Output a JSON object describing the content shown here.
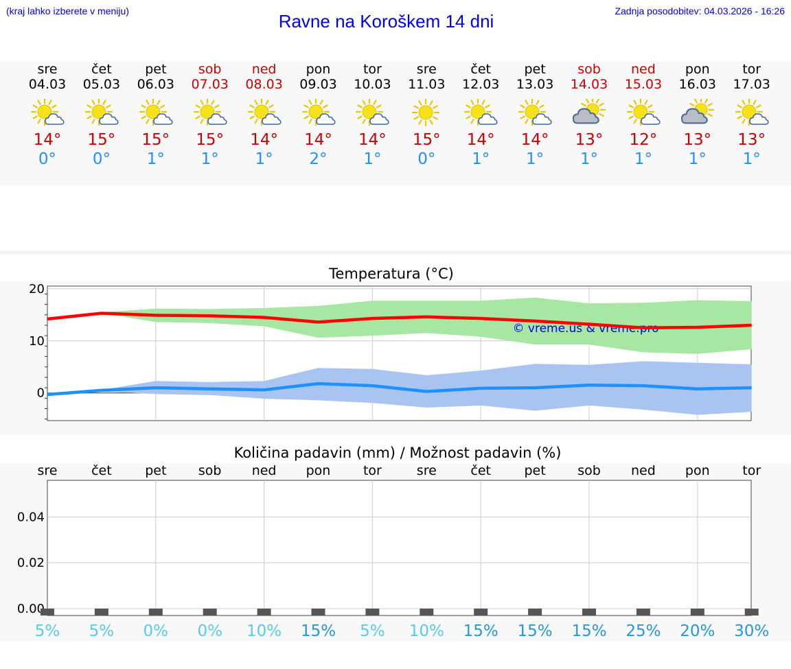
{
  "header": {
    "hint": "(kraj lahko izberete v meniju)",
    "title": "Ravne na Koroškem 14 dni",
    "updated": "Zadnja posodobitev: 04.03.2026 - 16:26"
  },
  "days": [
    {
      "name": "sre",
      "date": "04.03",
      "icon": "sun-cloud-icon",
      "tmax": "14°",
      "tmin": "0°",
      "weekend": false
    },
    {
      "name": "čet",
      "date": "05.03",
      "icon": "sun-cloud-icon",
      "tmax": "15°",
      "tmin": "0°",
      "weekend": false
    },
    {
      "name": "pet",
      "date": "06.03",
      "icon": "sun-cloud-icon",
      "tmax": "15°",
      "tmin": "1°",
      "weekend": false
    },
    {
      "name": "sob",
      "date": "07.03",
      "icon": "sun-cloud-icon",
      "tmax": "15°",
      "tmin": "1°",
      "weekend": true
    },
    {
      "name": "ned",
      "date": "08.03",
      "icon": "sun-cloud-icon",
      "tmax": "14°",
      "tmin": "1°",
      "weekend": true
    },
    {
      "name": "pon",
      "date": "09.03",
      "icon": "sun-cloud-icon",
      "tmax": "14°",
      "tmin": "2°",
      "weekend": false
    },
    {
      "name": "tor",
      "date": "10.03",
      "icon": "sun-cloud-icon",
      "tmax": "14°",
      "tmin": "1°",
      "weekend": false
    },
    {
      "name": "sre",
      "date": "11.03",
      "icon": "sun-icon",
      "tmax": "15°",
      "tmin": "0°",
      "weekend": false
    },
    {
      "name": "čet",
      "date": "12.03",
      "icon": "sun-cloud-icon",
      "tmax": "14°",
      "tmin": "1°",
      "weekend": false
    },
    {
      "name": "pet",
      "date": "13.03",
      "icon": "sun-cloud-icon",
      "tmax": "14°",
      "tmin": "1°",
      "weekend": false
    },
    {
      "name": "sob",
      "date": "14.03",
      "icon": "cloudy-sun-icon",
      "tmax": "13°",
      "tmin": "1°",
      "weekend": true
    },
    {
      "name": "ned",
      "date": "15.03",
      "icon": "sun-cloud-icon",
      "tmax": "12°",
      "tmin": "1°",
      "weekend": true
    },
    {
      "name": "pon",
      "date": "16.03",
      "icon": "cloudy-sun-icon",
      "tmax": "13°",
      "tmin": "1°",
      "weekend": false
    },
    {
      "name": "tor",
      "date": "17.03",
      "icon": "sun-cloud-icon",
      "tmax": "13°",
      "tmin": "1°",
      "weekend": false
    }
  ],
  "colors": {
    "max_line": "#ff0000",
    "max_band": "#a8e6a3",
    "min_line": "#1e90ff",
    "min_band": "#aac4f2",
    "pct_light": "#55ccee",
    "pct_dark": "#2299dd",
    "watermark": "#0000ee"
  },
  "chart_data": [
    {
      "type": "line",
      "title": "Temperatura (°C)",
      "watermark": "© vreme.us & vreme.pro",
      "x": [
        0,
        1,
        2,
        3,
        4,
        5,
        6,
        7,
        8,
        9,
        10,
        11,
        12,
        13
      ],
      "ylim": [
        -5.3,
        20.5
      ],
      "yticks": [
        0,
        10,
        20
      ],
      "series": [
        {
          "name": "max",
          "values": [
            14.2,
            15.3,
            14.9,
            14.8,
            14.5,
            13.6,
            14.3,
            14.6,
            14.3,
            13.8,
            13.2,
            12.5,
            12.6,
            13.0
          ],
          "band_low": [
            null,
            15.3,
            13.6,
            13.4,
            12.8,
            10.6,
            11.0,
            11.5,
            10.8,
            9.3,
            9.3,
            7.8,
            7.5,
            8.4
          ],
          "band_high": [
            null,
            15.5,
            16.2,
            16.1,
            16.3,
            16.7,
            17.7,
            17.7,
            17.7,
            18.3,
            17.2,
            17.3,
            17.8,
            17.6
          ]
        },
        {
          "name": "min",
          "values": [
            -0.3,
            0.5,
            1.0,
            0.8,
            0.6,
            1.8,
            1.4,
            0.3,
            0.9,
            1.0,
            1.5,
            1.4,
            0.8,
            1.0
          ],
          "band_low": [
            null,
            0.3,
            -0.2,
            -0.4,
            -1.1,
            -1.4,
            -1.9,
            -2.8,
            -2.4,
            -3.4,
            -2.4,
            -3.2,
            -4.2,
            -3.6
          ],
          "band_high": [
            null,
            0.6,
            2.3,
            2.1,
            2.3,
            4.8,
            4.6,
            3.4,
            4.3,
            5.6,
            5.4,
            6.1,
            5.8,
            5.5
          ]
        }
      ]
    },
    {
      "type": "bar",
      "title": "Količina padavin (mm) / Možnost padavin (%)",
      "categories": [
        "sre",
        "čet",
        "pet",
        "sob",
        "ned",
        "pon",
        "tor",
        "sre",
        "čet",
        "pet",
        "sob",
        "ned",
        "pon",
        "tor"
      ],
      "values": [
        0,
        0,
        0,
        0,
        0,
        0,
        0,
        0,
        0,
        0,
        0,
        0,
        0,
        0
      ],
      "ylim": [
        -0.003,
        0.056
      ],
      "yticks": [
        "0.00",
        "0.02",
        "0.04"
      ],
      "ytick_values": [
        0,
        0.02,
        0.04
      ],
      "probability": [
        "5%",
        "5%",
        "0%",
        "0%",
        "10%",
        "15%",
        "5%",
        "10%",
        "15%",
        "15%",
        "15%",
        "25%",
        "20%",
        "30%"
      ],
      "probability_values": [
        5,
        5,
        0,
        0,
        10,
        15,
        5,
        10,
        15,
        15,
        15,
        25,
        20,
        30
      ]
    }
  ]
}
